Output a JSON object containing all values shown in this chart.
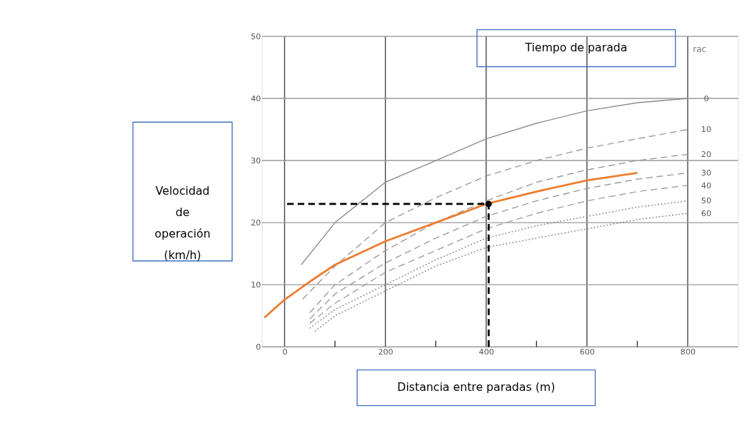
{
  "chart_data": {
    "type": "line",
    "title": "Tiempo de parada",
    "xlabel": "Distancia entre paradas (m)",
    "ylabel": "Velocidad de operación (km/h)",
    "xlim": [
      -45,
      900
    ],
    "ylim": [
      0,
      50
    ],
    "xticks": [
      0,
      {
        "value": 100,
        "label": null
      },
      200,
      {
        "value": 300,
        "label": null
      },
      400,
      {
        "value": 500,
        "label": null
      },
      600,
      {
        "value": 700,
        "label": null
      },
      800
    ],
    "yticks": [
      0,
      10,
      20,
      30,
      40,
      50
    ],
    "grid": true,
    "annotations": [
      "rac"
    ],
    "series": [
      {
        "name": "0",
        "color": "#8c8c8c",
        "line_style": "solid",
        "x": [
          33,
          100,
          200,
          300,
          400,
          500,
          600,
          700,
          800
        ],
        "values": [
          13.2,
          20,
          26.5,
          30,
          33.5,
          36,
          38,
          39.3,
          40
        ]
      },
      {
        "name": "10",
        "color": "#9a9a9a",
        "line_style": "dashed",
        "x": [
          36,
          100,
          200,
          300,
          400,
          500,
          600,
          700,
          800
        ],
        "values": [
          7.7,
          13,
          20,
          24,
          27.5,
          30,
          32,
          33.5,
          35
        ]
      },
      {
        "name": "20",
        "color": "#9a9a9a",
        "line_style": "dashed",
        "x": [
          50,
          100,
          200,
          300,
          400,
          500,
          600,
          700,
          800
        ],
        "values": [
          5.5,
          10,
          15.5,
          20,
          23.5,
          26.5,
          28.5,
          30,
          31
        ]
      },
      {
        "name": "30",
        "color": "#9a9a9a",
        "line_style": "dashed",
        "x": [
          50,
          100,
          200,
          300,
          400,
          500,
          600,
          700,
          800
        ],
        "values": [
          4.5,
          8.5,
          13.5,
          17.5,
          21,
          23.5,
          25.5,
          27,
          28
        ]
      },
      {
        "name": "40",
        "color": "#a0a0a0",
        "line_style": "dashed",
        "x": [
          50,
          100,
          200,
          300,
          400,
          500,
          600,
          700,
          800
        ],
        "values": [
          3.8,
          7,
          12,
          15.5,
          19,
          21.5,
          23.5,
          25,
          26
        ]
      },
      {
        "name": "50",
        "color": "#808080",
        "line_style": "dotted",
        "x": [
          50,
          100,
          200,
          300,
          400,
          500,
          600,
          700,
          800
        ],
        "values": [
          3,
          6,
          10,
          14,
          17.5,
          19.5,
          21,
          22.5,
          23.5
        ]
      },
      {
        "name": "60",
        "color": "#808080",
        "line_style": "dotted",
        "x": [
          60,
          100,
          200,
          300,
          400,
          500,
          600,
          700,
          800
        ],
        "values": [
          2.5,
          5,
          9,
          13,
          16,
          17.5,
          19,
          20.5,
          21.5
        ]
      },
      {
        "color": "#ed7d31",
        "line_style": "solid",
        "x": [
          -40,
          0,
          50,
          100,
          200,
          300,
          400,
          500,
          600,
          700
        ],
        "values": [
          4.7,
          7.6,
          10.5,
          13.2,
          17,
          20,
          23,
          25,
          26.8,
          28
        ]
      },
      {
        "color": "#000000",
        "line_style": "dashed",
        "x": [
          5,
          405
        ],
        "values": [
          23,
          23
        ]
      },
      {
        "color": "#000000",
        "line_style": "dashed",
        "x": [
          405,
          405
        ],
        "values": [
          0,
          23
        ]
      },
      {
        "type": "scatter",
        "marker": "circle",
        "color": "#000000",
        "x": [
          405
        ],
        "values": [
          23
        ]
      }
    ]
  }
}
